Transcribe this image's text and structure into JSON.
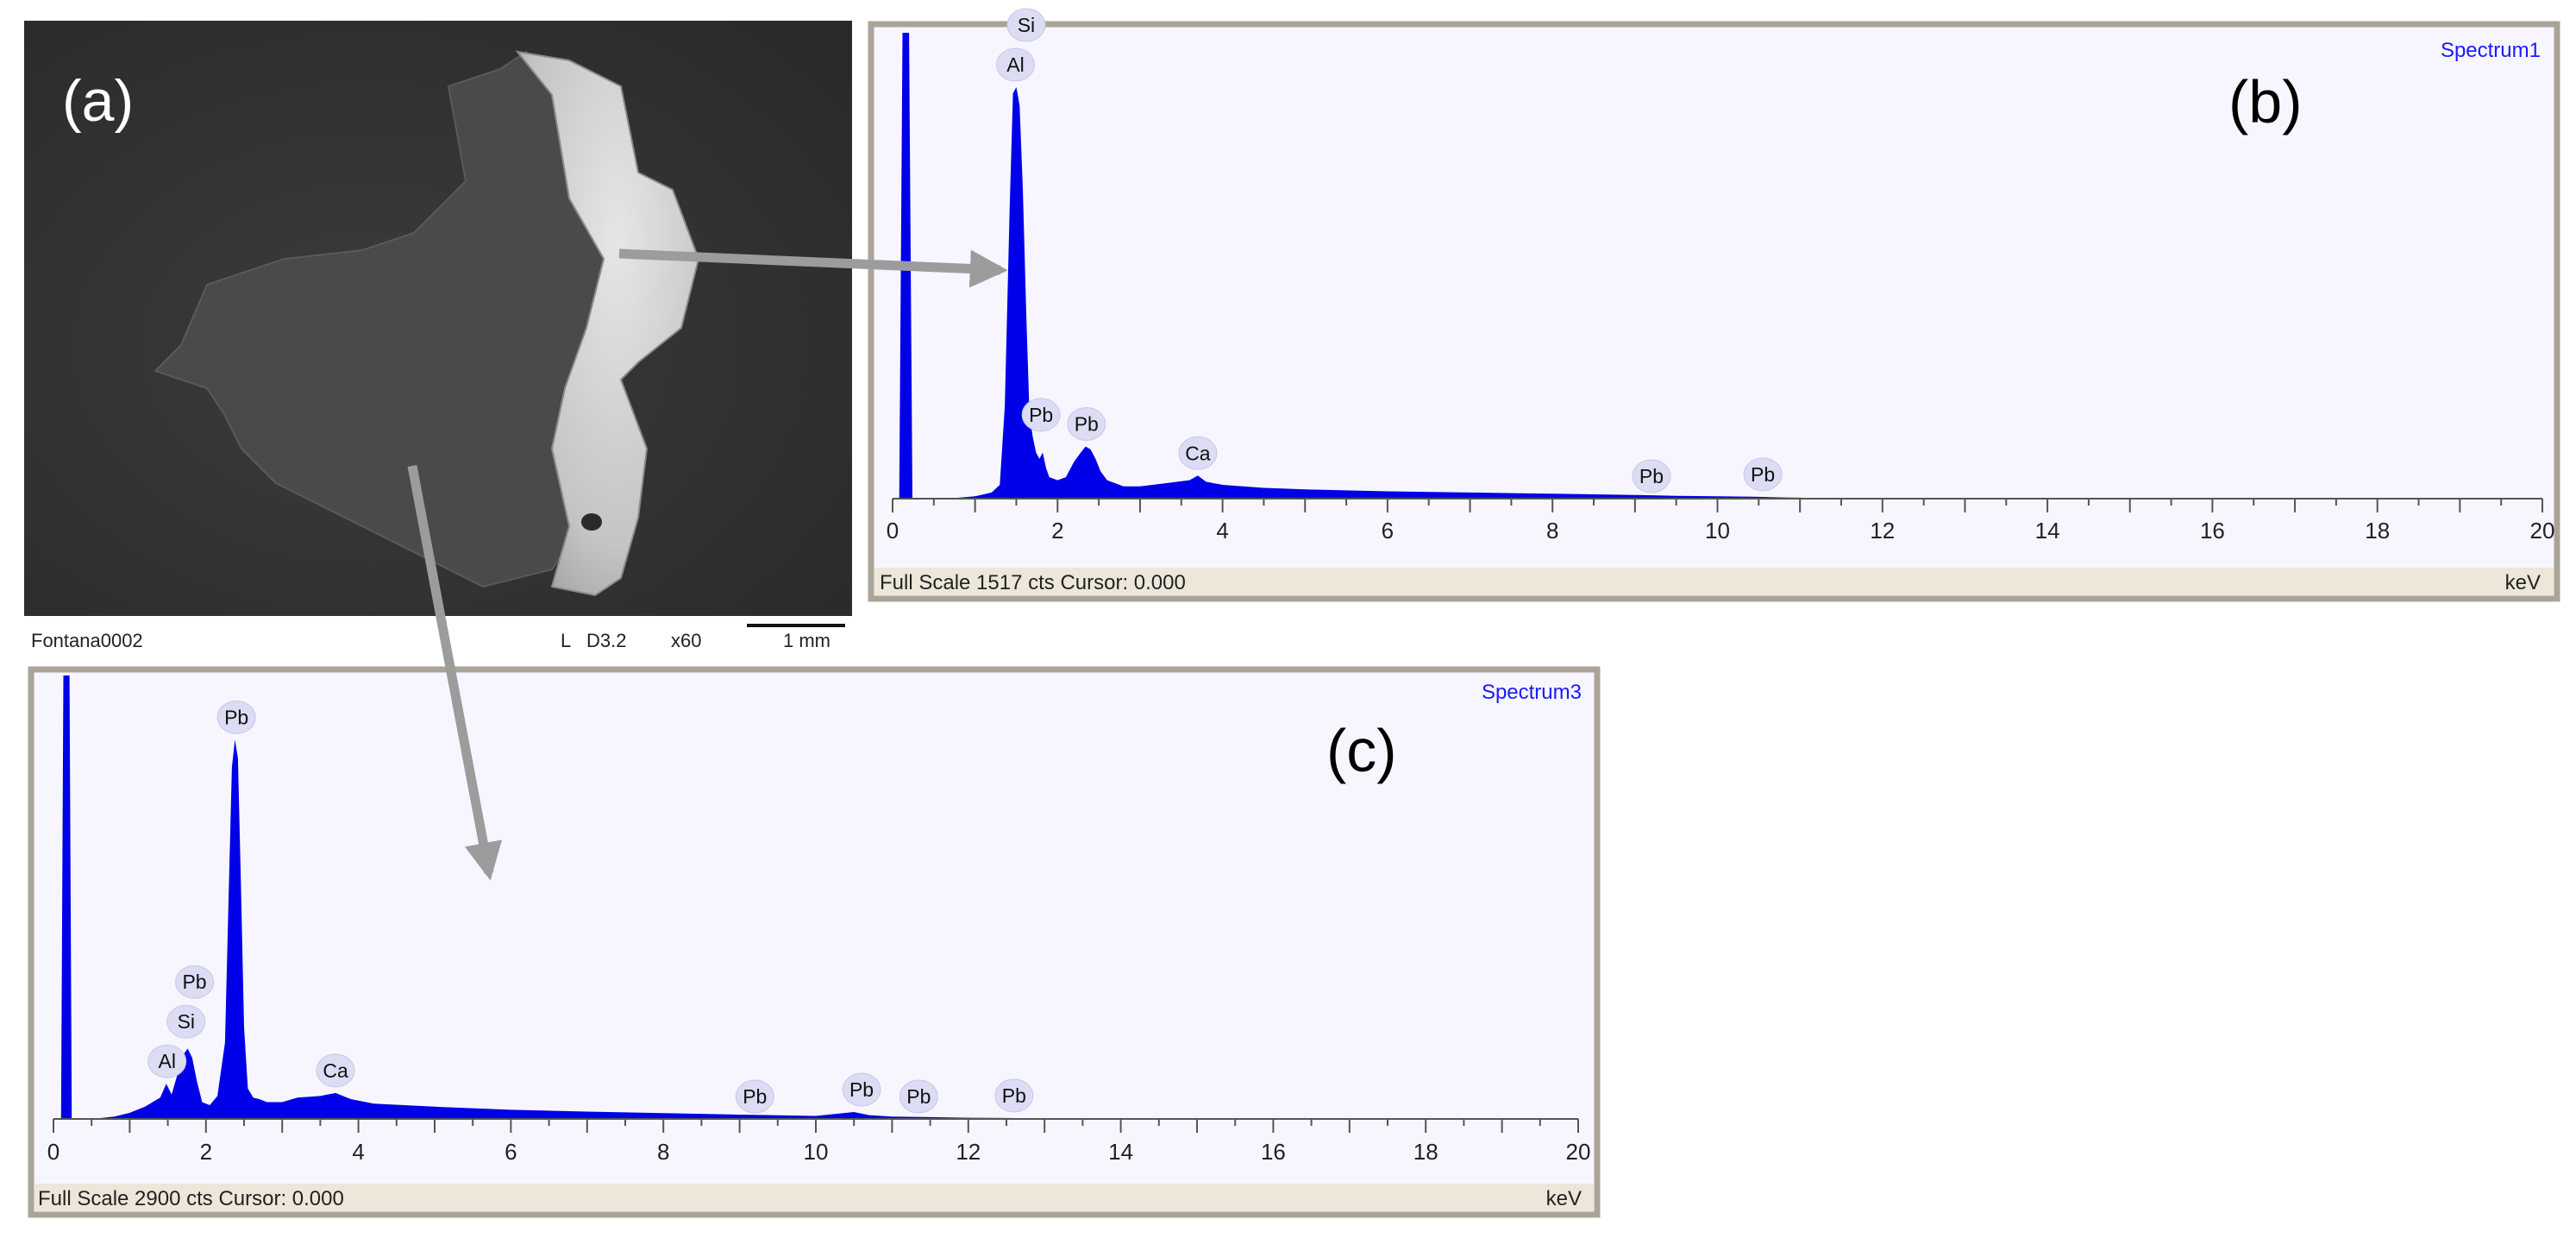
{
  "sem": {
    "panel_label": "(a)",
    "caption": "Fontana0002",
    "scale_bar": {
      "mode": "L",
      "detector": "D3.2",
      "magnification": "x60",
      "length": "1 mm"
    }
  },
  "chart_data": [
    {
      "type": "area",
      "panel_label": "(b)",
      "title": "Spectrum1",
      "xlabel": "keV",
      "footer": "Full Scale 1517 cts Cursor: 0.000",
      "xlim": [
        0,
        20
      ],
      "ylim": [
        0,
        1517
      ],
      "xticks": [
        0,
        2,
        4,
        6,
        8,
        10,
        12,
        14,
        16,
        18,
        20
      ],
      "x": [
        0.0,
        0.08,
        0.12,
        0.16,
        0.2,
        0.24,
        0.28,
        0.3,
        0.4,
        0.6,
        0.8,
        1.0,
        1.2,
        1.3,
        1.36,
        1.42,
        1.46,
        1.5,
        1.54,
        1.58,
        1.62,
        1.66,
        1.7,
        1.74,
        1.78,
        1.82,
        1.86,
        1.9,
        2.0,
        2.1,
        2.2,
        2.28,
        2.34,
        2.4,
        2.46,
        2.52,
        2.6,
        2.8,
        3.0,
        3.3,
        3.6,
        3.7,
        3.8,
        4.0,
        4.5,
        5.0,
        6.0,
        7.0,
        8.0,
        9.0,
        9.5,
        10.0,
        10.5,
        10.8,
        11.0,
        11.2,
        12.0,
        20.0
      ],
      "y": [
        0,
        0,
        1517,
        1517,
        1517,
        0,
        0,
        0,
        0,
        0,
        3,
        8,
        20,
        45,
        300,
        950,
        1320,
        1340,
        1280,
        1000,
        600,
        270,
        200,
        150,
        130,
        150,
        100,
        70,
        60,
        70,
        120,
        150,
        170,
        160,
        130,
        90,
        60,
        40,
        40,
        50,
        60,
        75,
        55,
        45,
        35,
        30,
        24,
        20,
        16,
        12,
        9,
        8,
        6,
        4,
        3,
        2,
        0,
        0
      ],
      "peaks": [
        {
          "label": "Al",
          "x": 1.49
        },
        {
          "label": "Si",
          "x": 1.62
        },
        {
          "label": "Pb",
          "x": 1.8
        },
        {
          "label": "Pb",
          "x": 2.35
        },
        {
          "label": "Ca",
          "x": 3.7
        },
        {
          "label": "Pb",
          "x": 9.2
        },
        {
          "label": "Pb",
          "x": 10.55
        }
      ]
    },
    {
      "type": "area",
      "panel_label": "(c)",
      "title": "Spectrum3",
      "xlabel": "keV",
      "footer": "Full Scale 2900 cts Cursor: 0.000",
      "xlim": [
        0,
        20
      ],
      "ylim": [
        0,
        2900
      ],
      "xticks": [
        0,
        2,
        4,
        6,
        8,
        10,
        12,
        14,
        16,
        18,
        20
      ],
      "x": [
        0.0,
        0.1,
        0.13,
        0.17,
        0.21,
        0.24,
        0.28,
        0.4,
        0.6,
        0.8,
        1.0,
        1.2,
        1.4,
        1.48,
        1.55,
        1.62,
        1.7,
        1.76,
        1.82,
        1.88,
        1.95,
        2.05,
        2.15,
        2.25,
        2.3,
        2.34,
        2.38,
        2.42,
        2.46,
        2.5,
        2.55,
        2.62,
        2.7,
        2.8,
        3.0,
        3.2,
        3.5,
        3.7,
        3.9,
        4.2,
        5.0,
        6.0,
        7.0,
        8.0,
        9.0,
        10.0,
        10.5,
        10.7,
        11.0,
        11.5,
        12.0,
        12.5,
        12.8,
        13.0,
        20.0
      ],
      "y": [
        0,
        0,
        2900,
        2900,
        2900,
        0,
        0,
        0,
        5,
        15,
        40,
        80,
        140,
        230,
        160,
        280,
        420,
        460,
        400,
        250,
        110,
        90,
        150,
        500,
        1500,
        2300,
        2480,
        2360,
        1500,
        600,
        200,
        140,
        130,
        110,
        110,
        140,
        150,
        170,
        130,
        100,
        80,
        60,
        48,
        38,
        28,
        20,
        45,
        25,
        16,
        12,
        8,
        6,
        4,
        2,
        0
      ],
      "peaks": [
        {
          "label": "Al",
          "x": 1.49
        },
        {
          "label": "Si",
          "x": 1.74
        },
        {
          "label": "Pb",
          "x": 1.85
        },
        {
          "label": "Pb",
          "x": 2.4
        },
        {
          "label": "Ca",
          "x": 3.7
        },
        {
          "label": "Pb",
          "x": 9.2
        },
        {
          "label": "Pb",
          "x": 10.6
        },
        {
          "label": "Pb",
          "x": 11.35
        },
        {
          "label": "Pb",
          "x": 12.6
        }
      ]
    }
  ],
  "colors": {
    "frame": "#aaa498",
    "panel_fill": "#f7f6ff",
    "footer_fill": "#ece7d9",
    "spectrum": "#0000e8",
    "title_text": "#1a1aff",
    "marker_fill": "#dcdcf4",
    "arrow": "#9c9c9c"
  }
}
